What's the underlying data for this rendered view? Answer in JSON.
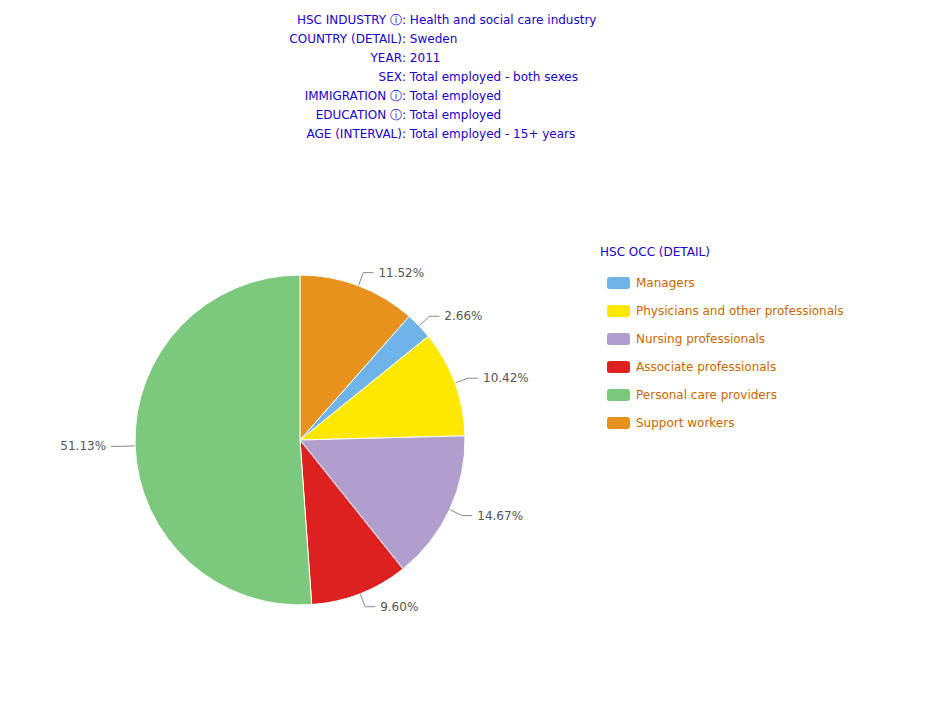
{
  "chart_data": {
    "type": "pie",
    "categories": [
      "Support workers",
      "Managers",
      "Physicians and other professionals",
      "Nursing professionals",
      "Associate professionals",
      "Personal care providers"
    ],
    "values": [
      11.52,
      2.66,
      10.42,
      14.67,
      9.6,
      51.13
    ],
    "value_labels": [
      "11.52%",
      "2.66%",
      "10.42%",
      "14.67%",
      "9.60%",
      "51.13%"
    ],
    "colors": [
      "#E8921E",
      "#6EB4E8",
      "#FFE800",
      "#B09ECC",
      "#DD2020",
      "#7CC87C"
    ],
    "data_labels": true,
    "legend": "right",
    "legend_title": "HSC OCC (DETAIL)",
    "legend_entries": [
      "Managers",
      "Physicians and other professionals",
      "Nursing professionals",
      "Associate professionals",
      "Personal care providers",
      "Support workers"
    ],
    "annotations": [
      "HSC INDUSTRY ⓘ: Health and social care industry",
      "COUNTRY (DETAIL): Sweden",
      "YEAR: 2011",
      "SEX: Total employed - both sexes",
      "IMMIGRATION ⓘ: Total employed",
      "EDUCATION ⓘ: Total employed",
      "AGE (INTERVAL): Total employed - 15+ years"
    ]
  }
}
